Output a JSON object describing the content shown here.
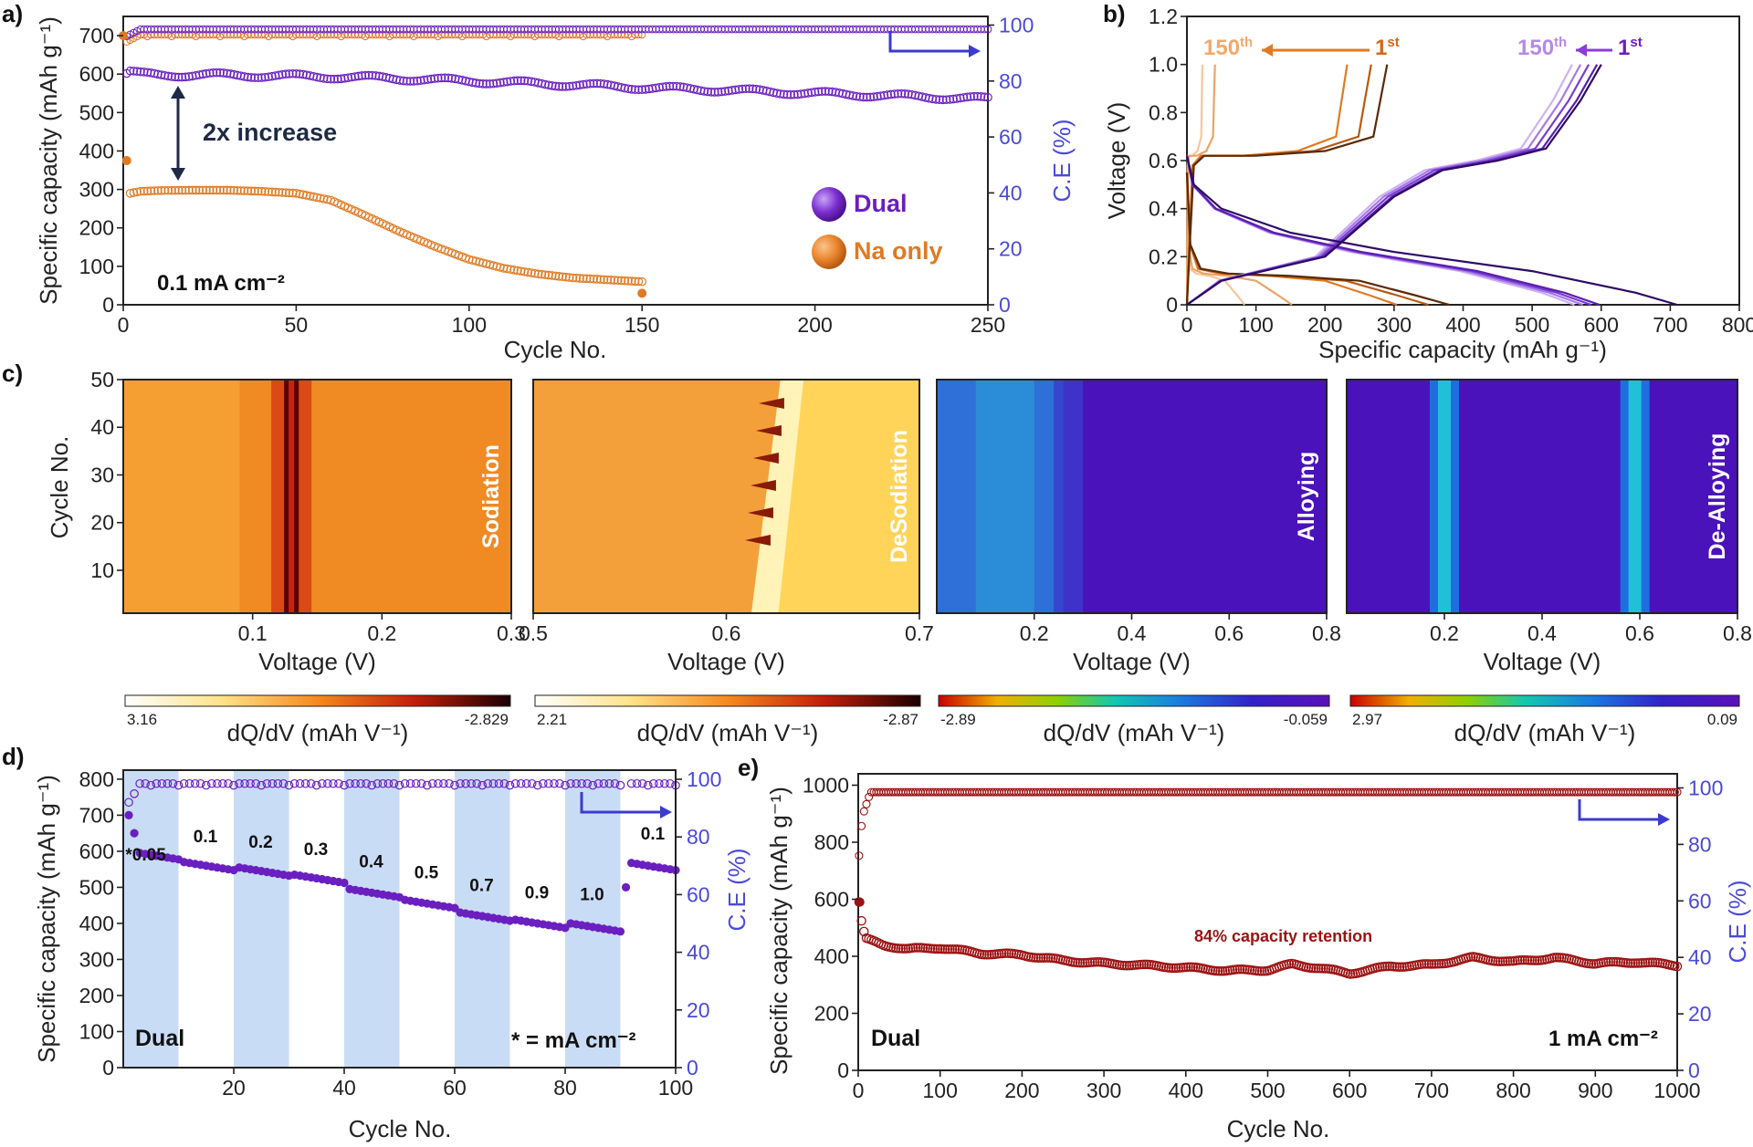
{
  "colors": {
    "dual": "#6a1fc0",
    "na": "#e07a22",
    "eRed": "#9b1212",
    "ceAxis": "#4a4ad8",
    "band": "#c9dcf5"
  },
  "panel_labels": {
    "a": "a)",
    "b": "b)",
    "c": "c)",
    "d": "d)",
    "e": "e)"
  },
  "chart_data": [
    {
      "id": "a",
      "type": "scatter",
      "xlabel": "Cycle No.",
      "ylabel": "Specific capacity (mAh g⁻¹)",
      "ylabel2": "C.E (%)",
      "xlim": [
        0,
        250
      ],
      "ylim": [
        0,
        750
      ],
      "y2lim": [
        0,
        100
      ],
      "xticks": [
        "0",
        "50",
        "100",
        "150",
        "200",
        "250"
      ],
      "yticks": [
        "0",
        "100",
        "200",
        "300",
        "400",
        "500",
        "600",
        "700"
      ],
      "y2ticks": [
        "0",
        "20",
        "40",
        "60",
        "80",
        "100"
      ],
      "annotation": "2x increase",
      "current_label": "0.1 mA cm⁻²",
      "legend": [
        "Dual",
        "Na only"
      ],
      "series": [
        {
          "name": "Dual",
          "kind": "capacity",
          "x": [
            1,
            2,
            5,
            10,
            25,
            50,
            75,
            100,
            125,
            150,
            175,
            200,
            225,
            250
          ],
          "values": [
            600,
            605,
            600,
            598,
            598,
            595,
            590,
            582,
            574,
            565,
            558,
            550,
            543,
            535
          ]
        },
        {
          "name": "Na only",
          "kind": "capacity",
          "x": [
            1,
            2,
            5,
            10,
            20,
            30,
            40,
            50,
            60,
            70,
            80,
            90,
            100,
            110,
            120,
            130,
            140,
            150
          ],
          "values": [
            375,
            290,
            295,
            297,
            298,
            298,
            295,
            290,
            272,
            232,
            190,
            152,
            118,
            95,
            80,
            70,
            65,
            60
          ]
        },
        {
          "name": "Dual CE",
          "kind": "ce",
          "x": [
            1,
            5,
            250
          ],
          "values": [
            96,
            98.5,
            98.5
          ]
        },
        {
          "name": "Na only CE",
          "kind": "ce",
          "x": [
            1,
            5,
            150
          ],
          "values": [
            94,
            96.5,
            96.5
          ]
        }
      ]
    },
    {
      "id": "b",
      "type": "line",
      "xlabel": "Specific capacity (mAh g⁻¹)",
      "ylabel": "Voltage (V)",
      "xlim": [
        0,
        800
      ],
      "ylim": [
        0,
        1.2
      ],
      "xticks": [
        "0",
        "100",
        "200",
        "300",
        "400",
        "500",
        "600",
        "700",
        "800"
      ],
      "yticks": [
        "0",
        "0.2",
        "0.4",
        "0.6",
        "0.8",
        "1.0",
        "1.2"
      ],
      "labels": {
        "na150": "150",
        "na1": "1",
        "dual150": "150",
        "dual1": "1",
        "th": "th",
        "st": "st"
      },
      "series": [
        {
          "name": "Na 1st discharge",
          "x": [
            0,
            5,
            20,
            60,
            150,
            250,
            330,
            380
          ],
          "values": [
            0.55,
            0.25,
            0.15,
            0.13,
            0.12,
            0.1,
            0.04,
            0
          ]
        },
        {
          "name": "Na 1st charge",
          "x": [
            0,
            5,
            10,
            25,
            100,
            200,
            270,
            280,
            290
          ],
          "values": [
            0,
            0.3,
            0.58,
            0.62,
            0.62,
            0.64,
            0.7,
            0.85,
            1.0
          ]
        },
        {
          "name": "Dual 1st discharge",
          "x": [
            0,
            10,
            50,
            150,
            300,
            500,
            650,
            710
          ],
          "values": [
            0.62,
            0.5,
            0.4,
            0.3,
            0.22,
            0.14,
            0.05,
            0
          ]
        },
        {
          "name": "Dual 1st charge",
          "x": [
            0,
            50,
            200,
            300,
            370,
            450,
            520,
            570,
            600
          ],
          "values": [
            0,
            0.1,
            0.2,
            0.45,
            0.56,
            0.6,
            0.65,
            0.85,
            1.0
          ]
        }
      ]
    },
    {
      "id": "c",
      "type": "heatmap",
      "ylabel": "Cycle No.",
      "xlabel": "Voltage (V)",
      "cbar_label": "dQ/dV (mAh V⁻¹)",
      "ylim": [
        1,
        50
      ],
      "yticks": [
        "10",
        "20",
        "30",
        "40",
        "50"
      ],
      "maps": [
        {
          "title": "Sodiation",
          "xlim": [
            0,
            0.3
          ],
          "xticks": [
            "0.1",
            "0.2",
            "0.3"
          ],
          "cbar_min": "3.16",
          "cbar_max": "-2.829",
          "peak_v": 0.13
        },
        {
          "title": "DeSodiation",
          "xlim": [
            0.5,
            0.7
          ],
          "xticks": [
            "0.5",
            "0.6",
            "0.7"
          ],
          "cbar_min": "2.21",
          "cbar_max": "-2.87",
          "peak_v": 0.63
        },
        {
          "title": "Alloying",
          "xlim": [
            0,
            0.8
          ],
          "xticks": [
            "0.2",
            "0.4",
            "0.6",
            "0.8"
          ],
          "cbar_min": "-2.89",
          "cbar_max": "-0.059",
          "peak_v": 0.15
        },
        {
          "title": "De-Alloying",
          "xlim": [
            0,
            0.8
          ],
          "xticks": [
            "0.2",
            "0.4",
            "0.6",
            "0.8"
          ],
          "cbar_min": "2.97",
          "cbar_max": "0.09",
          "peak_v": [
            0.2,
            0.59
          ]
        }
      ]
    },
    {
      "id": "d",
      "type": "scatter",
      "xlabel": "Cycle No.",
      "ylabel": "Specific capacity (mAh g⁻¹)",
      "ylabel2": "C.E (%)",
      "xlim": [
        0,
        100
      ],
      "ylim": [
        0,
        800
      ],
      "y2lim": [
        0,
        100
      ],
      "xticks": [
        "20",
        "40",
        "60",
        "80",
        "100"
      ],
      "yticks": [
        "0",
        "100",
        "200",
        "300",
        "400",
        "500",
        "600",
        "700",
        "800"
      ],
      "y2ticks": [
        "0",
        "20",
        "40",
        "60",
        "80",
        "100"
      ],
      "rates": [
        "*0.05",
        "0.1",
        "0.2",
        "0.3",
        "0.4",
        "0.5",
        "0.7",
        "0.9",
        "1.0",
        "0.1"
      ],
      "rate_values": [
        590,
        560,
        545,
        525,
        485,
        455,
        420,
        400,
        390,
        560
      ],
      "band_starts": [
        0,
        20,
        40,
        60,
        80
      ],
      "label_dual": "Dual",
      "footnote": "* = mA cm⁻²"
    },
    {
      "id": "e",
      "type": "scatter",
      "xlabel": "Cycle No.",
      "ylabel": "Specific capacity (mAh g⁻¹)",
      "ylabel2": "C.E (%)",
      "xlim": [
        0,
        1000
      ],
      "ylim": [
        0,
        1000
      ],
      "y2lim": [
        0,
        100
      ],
      "xticks": [
        "0",
        "100",
        "200",
        "300",
        "400",
        "500",
        "600",
        "700",
        "800",
        "900",
        "1000"
      ],
      "yticks": [
        "0",
        "200",
        "400",
        "600",
        "800",
        "1000"
      ],
      "y2ticks": [
        "0",
        "20",
        "40",
        "60",
        "80",
        "100"
      ],
      "annotation": "84% capacity retention",
      "label_dual": "Dual",
      "current_label": "1 mA cm⁻²",
      "series": [
        {
          "name": "capacity",
          "x": [
            1,
            5,
            10,
            30,
            60,
            100,
            150,
            200,
            250,
            300,
            350,
            400,
            450,
            500,
            530,
            560,
            600,
            650,
            700,
            750,
            800,
            850,
            900,
            950,
            1000
          ],
          "values": [
            590,
            500,
            460,
            440,
            425,
            430,
            410,
            405,
            385,
            375,
            368,
            360,
            350,
            352,
            372,
            360,
            340,
            365,
            370,
            395,
            380,
            395,
            375,
            380,
            368
          ]
        },
        {
          "name": "CE",
          "x": [
            1,
            5,
            15,
            1000
          ],
          "values": [
            76,
            90,
            98.5,
            98.5
          ]
        }
      ]
    }
  ]
}
